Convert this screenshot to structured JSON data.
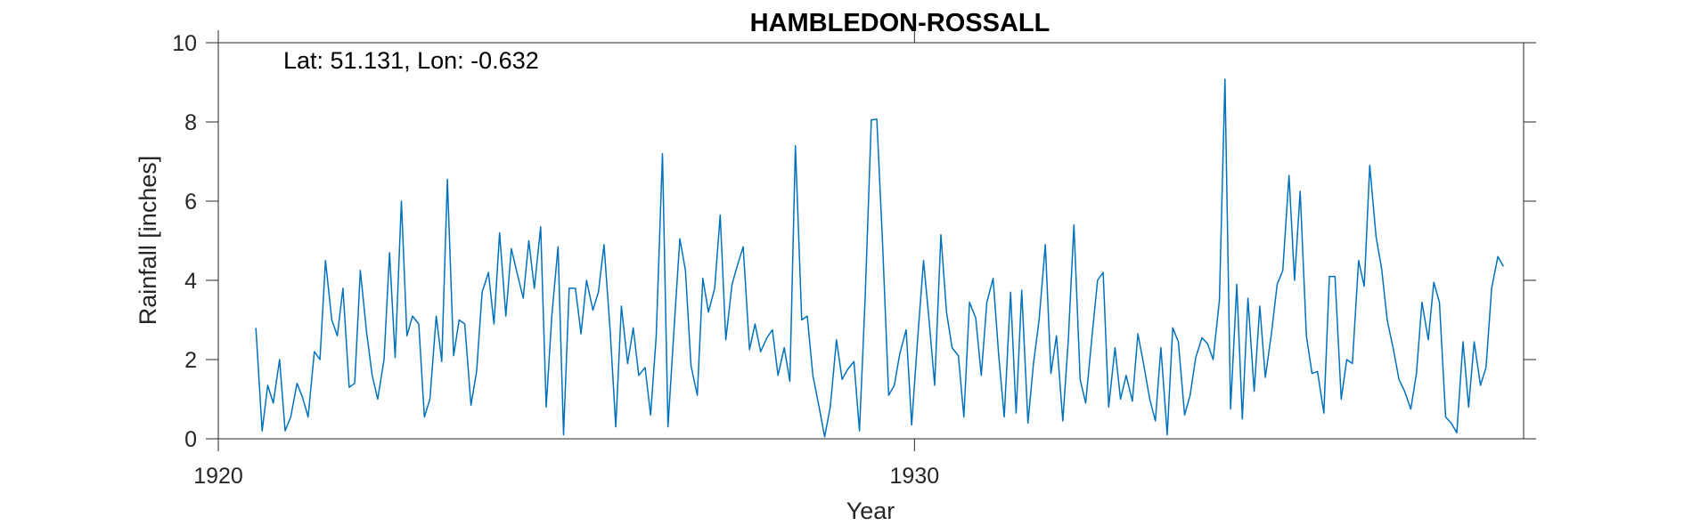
{
  "chart_data": {
    "type": "line",
    "title": "HAMBLEDON-ROSSALL",
    "annotation": "Lat: 51.131, Lon: -0.632",
    "xlabel": "Year",
    "ylabel": "Rainfall [inches]",
    "xlim": [
      1920,
      1938.75
    ],
    "ylim": [
      0,
      10
    ],
    "xticks": [
      1920,
      1930
    ],
    "yticks": [
      0,
      2,
      4,
      6,
      8,
      10
    ],
    "grid": false,
    "line_color": "#0072BD",
    "series": [
      {
        "x": [
          1920.54,
          1920.63,
          1920.71,
          1920.79,
          1920.88,
          1920.96,
          1921.04,
          1921.13,
          1921.21,
          1921.29,
          1921.38,
          1921.46,
          1921.54,
          1921.63,
          1921.71,
          1921.79,
          1921.88,
          1921.96,
          1922.04,
          1922.13,
          1922.21,
          1922.29,
          1922.38,
          1922.46,
          1922.54,
          1922.63,
          1922.71,
          1922.79,
          1922.88,
          1922.96,
          1923.04,
          1923.13,
          1923.21,
          1923.29,
          1923.38,
          1923.46,
          1923.54,
          1923.63,
          1923.71,
          1923.79,
          1923.88,
          1923.96,
          1924.04,
          1924.13,
          1924.21,
          1924.29,
          1924.38,
          1924.46,
          1924.54,
          1924.63,
          1924.71,
          1924.79,
          1924.88,
          1924.96,
          1925.04,
          1925.13,
          1925.21,
          1925.29,
          1925.38,
          1925.46,
          1925.54,
          1925.63,
          1925.71,
          1925.79,
          1925.88,
          1925.96,
          1926.04,
          1926.13,
          1926.21,
          1926.29,
          1926.38,
          1926.46,
          1926.54,
          1926.63,
          1926.71,
          1926.79,
          1926.88,
          1926.96,
          1927.04,
          1927.13,
          1927.21,
          1927.29,
          1927.38,
          1927.46,
          1927.54,
          1927.63,
          1927.71,
          1927.79,
          1927.88,
          1927.96,
          1928.04,
          1928.13,
          1928.21,
          1928.29,
          1928.38,
          1928.46,
          1928.54,
          1928.63,
          1928.71,
          1928.79,
          1928.88,
          1928.96,
          1929.04,
          1929.13,
          1929.21,
          1929.29,
          1929.38,
          1929.46,
          1929.54,
          1929.63,
          1929.71,
          1929.79,
          1929.88,
          1929.96,
          1930.04,
          1930.13,
          1930.21,
          1930.29,
          1930.38,
          1930.46,
          1930.54,
          1930.63,
          1930.71,
          1930.79,
          1930.88,
          1930.96,
          1931.04,
          1931.13,
          1931.21,
          1931.29,
          1931.38,
          1931.46,
          1931.54,
          1931.63,
          1931.71,
          1931.79,
          1931.88,
          1931.96,
          1932.04,
          1932.13,
          1932.21,
          1932.29,
          1932.38,
          1932.46,
          1932.54,
          1932.63,
          1932.71,
          1932.79,
          1932.88,
          1932.96,
          1933.04,
          1933.13,
          1933.21,
          1933.29,
          1933.38,
          1933.46,
          1933.54,
          1933.63,
          1933.71,
          1933.79,
          1933.88,
          1933.96,
          1934.04,
          1934.13,
          1934.21,
          1934.29,
          1934.38,
          1934.46,
          1934.54,
          1934.63,
          1934.71,
          1934.79,
          1934.88,
          1934.96,
          1935.04,
          1935.13,
          1935.21,
          1935.29,
          1935.38,
          1935.46,
          1935.54,
          1935.63,
          1935.71,
          1935.79,
          1935.88,
          1935.96,
          1936.04,
          1936.13,
          1936.21,
          1936.29,
          1936.38,
          1936.46,
          1936.54,
          1936.63,
          1936.71,
          1936.79,
          1936.88,
          1936.96,
          1937.04,
          1937.13,
          1937.21,
          1937.29,
          1937.38,
          1937.46,
          1937.54,
          1937.63,
          1937.71,
          1937.79,
          1937.88,
          1937.96,
          1938.04,
          1938.13,
          1938.21,
          1938.29,
          1938.38,
          1938.46
        ],
        "y": [
          2.8,
          0.2,
          1.35,
          0.9,
          2.0,
          0.2,
          0.55,
          1.4,
          1.05,
          0.55,
          2.2,
          2.0,
          4.5,
          3.0,
          2.6,
          3.8,
          1.3,
          1.4,
          4.25,
          2.7,
          1.6,
          1.0,
          2.0,
          4.7,
          2.05,
          6.0,
          2.6,
          3.1,
          2.9,
          0.55,
          1.0,
          3.1,
          1.95,
          6.55,
          2.1,
          3.0,
          2.9,
          0.85,
          1.7,
          3.7,
          4.2,
          2.9,
          5.2,
          3.1,
          4.8,
          4.2,
          3.55,
          5.0,
          3.8,
          5.35,
          0.8,
          3.1,
          4.85,
          0.1,
          3.8,
          3.8,
          2.65,
          4.0,
          3.25,
          3.7,
          4.9,
          2.7,
          0.3,
          3.35,
          1.9,
          2.8,
          1.6,
          1.8,
          0.6,
          2.6,
          7.2,
          0.3,
          2.6,
          5.05,
          4.25,
          1.85,
          1.1,
          4.05,
          3.2,
          3.8,
          5.65,
          2.5,
          3.9,
          4.4,
          4.85,
          2.25,
          2.9,
          2.2,
          2.55,
          2.75,
          1.6,
          2.3,
          1.45,
          7.4,
          3.0,
          3.1,
          1.6,
          0.8,
          0.05,
          0.8,
          2.5,
          1.5,
          1.75,
          1.95,
          0.2,
          3.5,
          8.05,
          8.07,
          5.0,
          1.1,
          1.35,
          2.15,
          2.75,
          0.35,
          2.4,
          4.5,
          3.0,
          1.35,
          5.15,
          3.2,
          2.3,
          2.1,
          0.55,
          3.45,
          3.05,
          1.6,
          3.45,
          4.05,
          2.1,
          0.55,
          3.7,
          0.65,
          3.75,
          0.4,
          1.9,
          3.0,
          4.9,
          1.65,
          2.6,
          0.45,
          2.5,
          5.4,
          1.5,
          0.9,
          2.4,
          4.0,
          4.2,
          0.8,
          2.3,
          1.0,
          1.6,
          0.95,
          2.65,
          1.9,
          1.0,
          0.45,
          2.3,
          0.1,
          2.8,
          2.45,
          0.6,
          1.1,
          2.05,
          2.55,
          2.4,
          2.0,
          3.5,
          9.08,
          0.75,
          3.9,
          0.5,
          3.55,
          1.2,
          3.35,
          1.55,
          2.7,
          3.9,
          4.25,
          6.65,
          4.0,
          6.25,
          2.6,
          1.65,
          1.7,
          0.65,
          4.1,
          4.1,
          1.0,
          2.0,
          1.9,
          4.5,
          3.85,
          6.9,
          5.1,
          4.3,
          3.0,
          2.25,
          1.5,
          1.2,
          0.75,
          1.65,
          3.45,
          2.5,
          3.95,
          3.45,
          0.55,
          0.4,
          0.15,
          2.45,
          0.8,
          2.45,
          1.35,
          1.8,
          3.8,
          4.6,
          4.35
        ]
      }
    ]
  }
}
